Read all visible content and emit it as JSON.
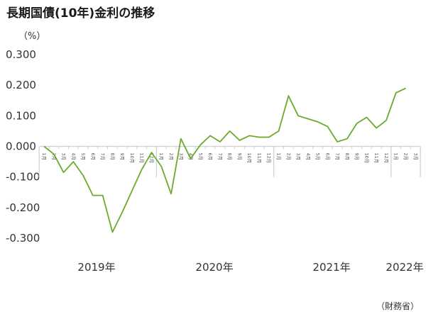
{
  "title": "長期国債(10年)金利の推移",
  "source": "（財務省）",
  "chart_data": {
    "type": "line",
    "title": "長期国債(10年)金利の推移",
    "ylabel": "（%）",
    "xlabel": "",
    "ylim": [
      -0.3,
      0.3
    ],
    "yticks": [
      0.3,
      0.2,
      0.1,
      0.0,
      -0.1,
      -0.2,
      -0.3
    ],
    "ytick_labels": [
      "0.300",
      "0.200",
      "0.100",
      "0.000",
      "-0.100",
      "-0.200",
      "-0.300"
    ],
    "year_labels": [
      "2019年",
      "2020年",
      "2021年",
      "2022年"
    ],
    "month_labels": [
      "1月",
      "2月",
      "3月",
      "4月",
      "5月",
      "6月",
      "7月",
      "8月",
      "9月",
      "10月",
      "11月",
      "12月",
      "1月",
      "2月",
      "3月",
      "4月",
      "5月",
      "6月",
      "7月",
      "8月",
      "9月",
      "10月",
      "11月",
      "12月",
      "1月",
      "2月",
      "3月",
      "4月",
      "5月",
      "6月",
      "7月",
      "8月",
      "9月",
      "10月",
      "11月",
      "12月",
      "1月",
      "2月",
      "3月"
    ],
    "color": "#6aab2e",
    "grid": false,
    "series": [
      {
        "x": [
          "2019-01",
          "2019-02",
          "2019-03",
          "2019-04",
          "2019-05",
          "2019-06",
          "2019-07",
          "2019-08",
          "2019-09",
          "2019-10",
          "2019-11",
          "2019-12",
          "2020-01",
          "2020-02",
          "2020-03",
          "2020-04",
          "2020-05",
          "2020-06",
          "2020-07",
          "2020-08",
          "2020-09",
          "2020-10",
          "2020-11",
          "2020-12",
          "2021-01",
          "2021-02",
          "2021-03",
          "2021-04",
          "2021-05",
          "2021-06",
          "2021-07",
          "2021-08",
          "2021-09",
          "2021-10",
          "2021-11",
          "2021-12",
          "2022-01",
          "2022-02"
        ],
        "values": [
          0.0,
          -0.025,
          -0.085,
          -0.05,
          -0.095,
          -0.16,
          -0.16,
          -0.28,
          -0.215,
          -0.145,
          -0.075,
          -0.02,
          -0.065,
          -0.155,
          0.025,
          -0.04,
          0.005,
          0.035,
          0.015,
          0.05,
          0.02,
          0.035,
          0.03,
          0.03,
          0.05,
          0.165,
          0.1,
          0.09,
          0.08,
          0.065,
          0.015,
          0.025,
          0.075,
          0.095,
          0.06,
          0.085,
          0.175,
          0.19
        ]
      }
    ]
  }
}
